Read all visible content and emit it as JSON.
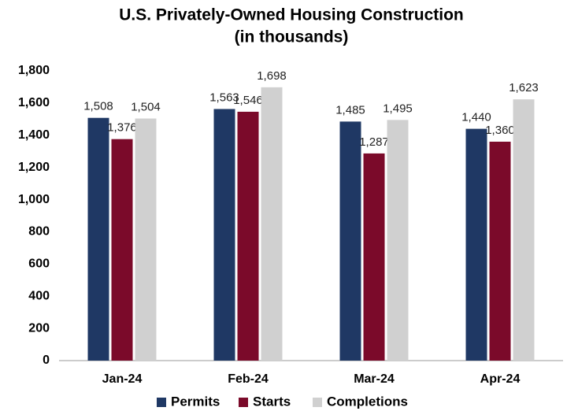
{
  "chart_data": {
    "type": "bar",
    "title": "U.S. Privately-Owned Housing Construction",
    "subtitle": "(in thousands)",
    "categories": [
      "Jan-24",
      "Feb-24",
      "Mar-24",
      "Apr-24"
    ],
    "series": [
      {
        "name": "Permits",
        "color": "#1f3864",
        "values": [
          1508,
          1563,
          1485,
          1440
        ],
        "value_labels": [
          "1,508",
          "1,563",
          "1,485",
          "1,440"
        ]
      },
      {
        "name": "Starts",
        "color": "#7b0a2a",
        "values": [
          1376,
          1546,
          1287,
          1360
        ],
        "value_labels": [
          "1,376",
          "1,546",
          "1,287",
          "1,360"
        ]
      },
      {
        "name": "Completions",
        "color": "#d0d0d0",
        "values": [
          1504,
          1698,
          1495,
          1623
        ],
        "value_labels": [
          "1,504",
          "1,698",
          "1,495",
          "1,623"
        ]
      }
    ],
    "ylim": [
      0,
      1800
    ],
    "yticks": [
      0,
      200,
      400,
      600,
      800,
      {
        "value": 1000,
        "label": "1,000"
      },
      {
        "value": 1200,
        "label": "1,200"
      },
      {
        "value": 1400,
        "label": "1,400"
      },
      {
        "value": 1600,
        "label": "1,600"
      },
      {
        "value": 1800,
        "label": "1,800"
      }
    ],
    "grid": false,
    "legend": "bottom"
  }
}
